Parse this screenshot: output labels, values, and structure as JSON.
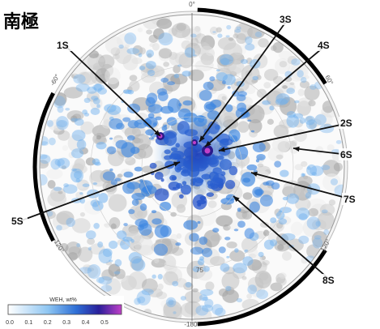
{
  "header": {
    "title": "南極"
  },
  "map": {
    "labels": [
      "1S",
      "2S",
      "3S",
      "4S",
      "5S",
      "6S",
      "7S",
      "8S"
    ],
    "longitudes": [
      "0°",
      "60°",
      "120°",
      "-180°",
      "-120°",
      "-60°"
    ],
    "inner_label": "75"
  },
  "colorbar": {
    "title": "WEH, wt%",
    "ticks": [
      "0.0",
      "0.1",
      "0.2",
      "0.3",
      "0.4",
      "0.5"
    ]
  }
}
